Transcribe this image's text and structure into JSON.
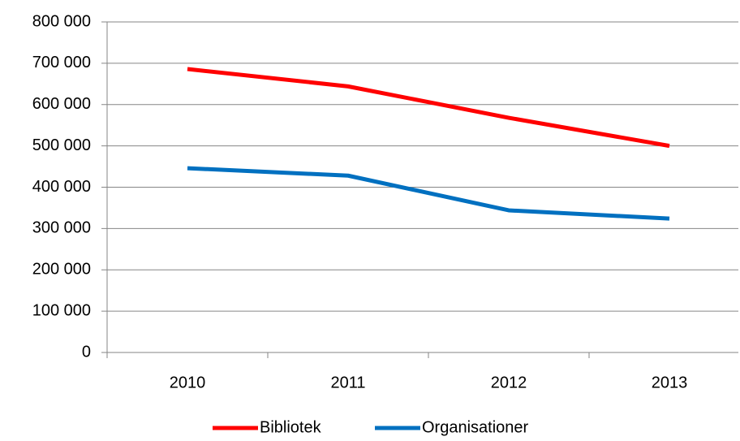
{
  "chart_data": {
    "type": "line",
    "categories": [
      "2010",
      "2011",
      "2012",
      "2013"
    ],
    "series": [
      {
        "name": "Bibliotek",
        "color": "#ff0000",
        "values": [
          686000,
          644000,
          568000,
          500000
        ]
      },
      {
        "name": "Organisationer",
        "color": "#0070c0",
        "values": [
          446000,
          428000,
          344000,
          324000
        ]
      }
    ],
    "ylim": [
      0,
      800000
    ],
    "yticks": [
      0,
      {
        "value": 100000,
        "label": "100 000"
      },
      {
        "value": 200000,
        "label": "200 000"
      },
      {
        "value": 300000,
        "label": "300 000"
      },
      {
        "value": 400000,
        "label": "400 000"
      },
      {
        "value": 500000,
        "label": "500 000"
      },
      {
        "value": 600000,
        "label": "600 000"
      },
      {
        "value": 700000,
        "label": "700 000"
      },
      {
        "value": 800000,
        "label": "800 000"
      }
    ],
    "grid": true,
    "legend": "bottom"
  }
}
